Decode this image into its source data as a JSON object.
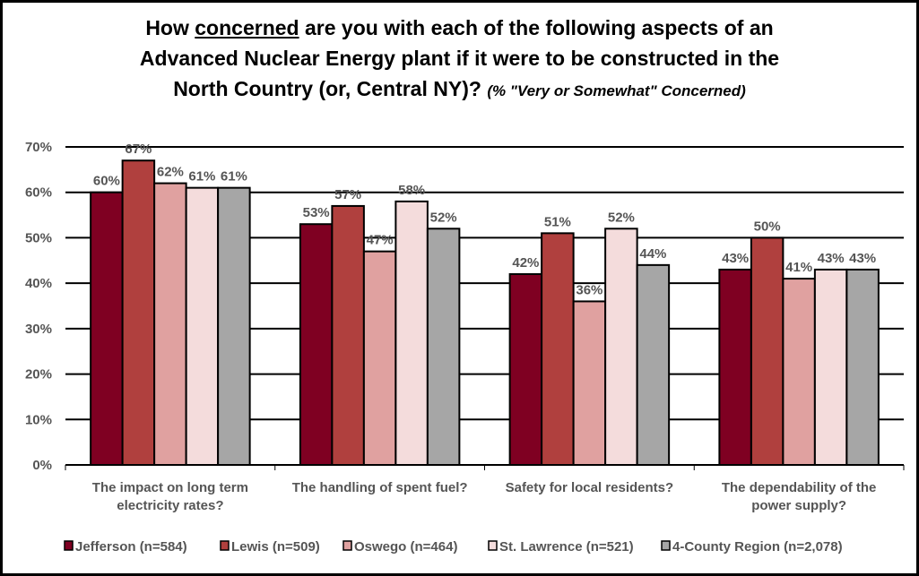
{
  "chart_data": {
    "type": "bar",
    "title_parts": {
      "pre": "How ",
      "underlined": "concerned",
      "line1_post": " are you with each of the following aspects of an",
      "line2": "Advanced Nuclear Energy plant if it were to be constructed in the",
      "line3": "North Country (or, Central NY)?",
      "subtitle": "(% \"Very or Somewhat\" Concerned)"
    },
    "categories": [
      [
        "The impact on long term",
        "electricity rates?"
      ],
      [
        "The handling of spent fuel?"
      ],
      [
        "Safety for local residents?"
      ],
      [
        "The dependability of the",
        "power supply?"
      ]
    ],
    "series": [
      {
        "name": "Jefferson (n=584)",
        "color": "#7f0022",
        "values": [
          60,
          53,
          42,
          43
        ]
      },
      {
        "name": "Lewis (n=509)",
        "color": "#b0403e",
        "values": [
          67,
          57,
          51,
          50
        ]
      },
      {
        "name": "Oswego (n=464)",
        "color": "#e0a1a0",
        "values": [
          62,
          47,
          36,
          41
        ]
      },
      {
        "name": "St. Lawrence (n=521)",
        "color": "#f4dcdc",
        "values": [
          61,
          58,
          52,
          43
        ]
      },
      {
        "name": "4-County Region (n=2,078)",
        "color": "#a6a6a6",
        "values": [
          61,
          52,
          44,
          43
        ]
      }
    ],
    "ylim": [
      0,
      70
    ],
    "yticks": [
      "0%",
      "10%",
      "20%",
      "30%",
      "40%",
      "50%",
      "60%",
      "70%"
    ],
    "value_suffix": "%",
    "grid": true,
    "legend": "bottom"
  }
}
